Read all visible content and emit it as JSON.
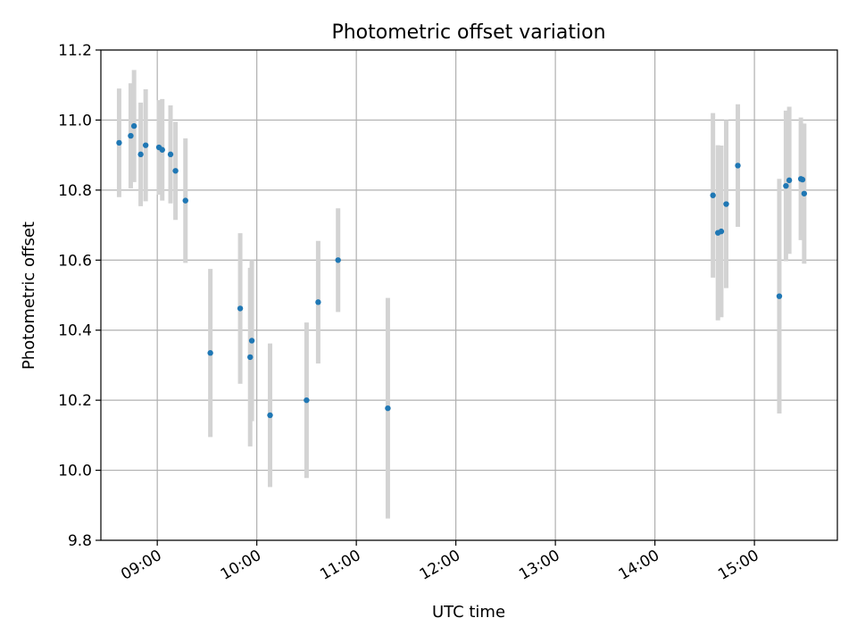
{
  "chart_data": {
    "type": "scatter",
    "title": "Photometric offset variation",
    "xlabel": "UTC time",
    "ylabel": "Photometric offset",
    "xlim": [
      "08:26",
      "15:50"
    ],
    "ylim": [
      9.8,
      11.2
    ],
    "x_ticks": [
      "09:00",
      "10:00",
      "11:00",
      "12:00",
      "13:00",
      "14:00",
      "15:00"
    ],
    "y_ticks": [
      "9.8",
      "10.0",
      "10.2",
      "10.4",
      "10.6",
      "10.8",
      "11.0",
      "11.2"
    ],
    "grid": true,
    "marker_color": "#1f77b4",
    "errorbar_color": "#d3d3d3",
    "points": [
      {
        "time": "08:37",
        "y": 10.935,
        "err": 0.155
      },
      {
        "time": "08:44",
        "y": 10.955,
        "err": 0.15
      },
      {
        "time": "08:46",
        "y": 10.983,
        "err": 0.16
      },
      {
        "time": "08:50",
        "y": 10.902,
        "err": 0.148
      },
      {
        "time": "08:53",
        "y": 10.928,
        "err": 0.16
      },
      {
        "time": "09:01",
        "y": 10.922,
        "err": 0.135
      },
      {
        "time": "09:03",
        "y": 10.915,
        "err": 0.145
      },
      {
        "time": "09:08",
        "y": 10.902,
        "err": 0.14
      },
      {
        "time": "09:11",
        "y": 10.855,
        "err": 0.14
      },
      {
        "time": "09:17",
        "y": 10.77,
        "err": 0.178
      },
      {
        "time": "09:32",
        "y": 10.335,
        "err": 0.24
      },
      {
        "time": "09:50",
        "y": 10.462,
        "err": 0.215
      },
      {
        "time": "09:56",
        "y": 10.323,
        "err": 0.255
      },
      {
        "time": "09:57",
        "y": 10.37,
        "err": 0.23
      },
      {
        "time": "10:08",
        "y": 10.157,
        "err": 0.205
      },
      {
        "time": "10:30",
        "y": 10.2,
        "err": 0.222
      },
      {
        "time": "10:37",
        "y": 10.48,
        "err": 0.175
      },
      {
        "time": "10:49",
        "y": 10.6,
        "err": 0.148
      },
      {
        "time": "11:19",
        "y": 10.177,
        "err": 0.315
      },
      {
        "time": "14:35",
        "y": 10.785,
        "err": 0.235
      },
      {
        "time": "14:38",
        "y": 10.678,
        "err": 0.25
      },
      {
        "time": "14:40",
        "y": 10.682,
        "err": 0.245
      },
      {
        "time": "14:43",
        "y": 10.76,
        "err": 0.24
      },
      {
        "time": "14:50",
        "y": 10.87,
        "err": 0.175
      },
      {
        "time": "15:15",
        "y": 10.497,
        "err": 0.335
      },
      {
        "time": "15:19",
        "y": 10.812,
        "err": 0.215
      },
      {
        "time": "15:21",
        "y": 10.828,
        "err": 0.21
      },
      {
        "time": "15:28",
        "y": 10.832,
        "err": 0.175
      },
      {
        "time": "15:29",
        "y": 10.83,
        "err": 0.16
      },
      {
        "time": "15:30",
        "y": 10.79,
        "err": 0.2
      }
    ]
  }
}
